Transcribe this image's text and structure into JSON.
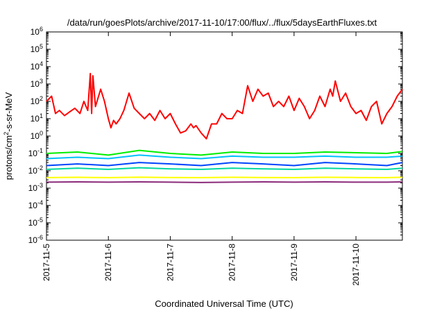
{
  "chart_data": {
    "type": "line",
    "title": "/data/run/goesPlots/archive/2017-11-10/17:00/flux/../flux/5daysEarthFluxes.txt",
    "xlabel": "Coordinated Universal Time (UTC)",
    "ylabel": "protons/cm²-s-sr-MeV",
    "ylabel_base": "protons/cm",
    "ylabel_sup": "2",
    "ylabel_rest": "-s-sr-MeV",
    "y_scale": "log",
    "ylim": [
      1e-06,
      1000000.0
    ],
    "y_ticks": [
      {
        "base": "10",
        "exp": "-6"
      },
      {
        "base": "10",
        "exp": "-5"
      },
      {
        "base": "10",
        "exp": "-4"
      },
      {
        "base": "10",
        "exp": "-3"
      },
      {
        "base": "10",
        "exp": "-2"
      },
      {
        "base": "10",
        "exp": "-1"
      },
      {
        "base": "10",
        "exp": "0"
      },
      {
        "base": "10",
        "exp": "1"
      },
      {
        "base": "10",
        "exp": "2"
      },
      {
        "base": "10",
        "exp": "3"
      },
      {
        "base": "10",
        "exp": "4"
      },
      {
        "base": "10",
        "exp": "5"
      },
      {
        "base": "10",
        "exp": "6"
      }
    ],
    "xlim": [
      "2017-11-05T00:00",
      "2017-11-10T18:00"
    ],
    "x_ticks": [
      "2017-11-5",
      "2017-11-6",
      "2017-11-7",
      "2017-11-8",
      "2017-11-9",
      "2017-11-10"
    ],
    "grid": false,
    "series": [
      {
        "color": "#ff0000",
        "x": [
          "2017-11-05T00:00",
          "2017-11-05T02:00",
          "2017-11-05T03:30",
          "2017-11-05T05:00",
          "2017-11-05T07:00",
          "2017-11-05T09:00",
          "2017-11-05T11:00",
          "2017-11-05T13:00",
          "2017-11-05T14:30",
          "2017-11-05T16:00",
          "2017-11-05T17:00",
          "2017-11-05T17:30",
          "2017-11-05T18:00",
          "2017-11-05T19:00",
          "2017-11-05T21:00",
          "2017-11-05T22:30",
          "2017-11-06T00:00",
          "2017-11-06T01:00",
          "2017-11-06T02:00",
          "2017-11-06T03:00",
          "2017-11-06T04:30",
          "2017-11-06T06:00",
          "2017-11-06T08:00",
          "2017-11-06T10:00",
          "2017-11-06T12:00",
          "2017-11-06T14:00",
          "2017-11-06T16:00",
          "2017-11-06T18:00",
          "2017-11-06T20:00",
          "2017-11-06T22:00",
          "2017-11-07T00:00",
          "2017-11-07T02:00",
          "2017-11-07T04:00",
          "2017-11-07T06:00",
          "2017-11-07T08:00",
          "2017-11-07T09:00",
          "2017-11-07T10:00",
          "2017-11-07T12:00",
          "2017-11-07T14:00",
          "2017-11-07T16:00",
          "2017-11-07T18:00",
          "2017-11-07T20:00",
          "2017-11-07T22:00",
          "2017-11-08T00:00",
          "2017-11-08T02:00",
          "2017-11-08T04:00",
          "2017-11-08T06:00",
          "2017-11-08T08:00",
          "2017-11-08T10:00",
          "2017-11-08T12:00",
          "2017-11-08T14:00",
          "2017-11-08T16:00",
          "2017-11-08T18:00",
          "2017-11-08T20:00",
          "2017-11-08T22:00",
          "2017-11-09T00:00",
          "2017-11-09T02:00",
          "2017-11-09T04:00",
          "2017-11-09T06:00",
          "2017-11-09T08:00",
          "2017-11-09T10:00",
          "2017-11-09T12:00",
          "2017-11-09T14:00",
          "2017-11-09T15:00",
          "2017-11-09T16:00",
          "2017-11-09T18:00",
          "2017-11-09T20:00",
          "2017-11-09T22:00",
          "2017-11-10T00:00",
          "2017-11-10T02:00",
          "2017-11-10T04:00",
          "2017-11-10T06:00",
          "2017-11-10T08:00",
          "2017-11-10T10:00",
          "2017-11-10T12:00",
          "2017-11-10T14:00",
          "2017-11-10T16:00",
          "2017-11-10T18:00"
        ],
        "values": [
          100,
          200,
          20,
          30,
          15,
          25,
          40,
          20,
          100,
          30,
          4000,
          20,
          3000,
          50,
          500,
          100,
          10,
          3,
          8,
          5,
          10,
          30,
          300,
          40,
          20,
          10,
          20,
          8,
          30,
          10,
          20,
          5,
          1.5,
          2,
          5,
          3,
          4,
          1.5,
          0.7,
          5,
          5,
          20,
          10,
          10,
          30,
          20,
          800,
          100,
          500,
          200,
          300,
          50,
          100,
          50,
          200,
          30,
          150,
          50,
          10,
          30,
          200,
          50,
          500,
          200,
          1500,
          100,
          300,
          50,
          20,
          30,
          8,
          50,
          100,
          5,
          20,
          50,
          200,
          500
        ]
      },
      {
        "color": "#00ee00",
        "x": [
          "2017-11-05T00:00",
          "2017-11-05T12:00",
          "2017-11-06T00:00",
          "2017-11-06T12:00",
          "2017-11-07T00:00",
          "2017-11-07T12:00",
          "2017-11-08T00:00",
          "2017-11-08T12:00",
          "2017-11-09T00:00",
          "2017-11-09T12:00",
          "2017-11-10T00:00",
          "2017-11-10T12:00",
          "2017-11-10T18:00"
        ],
        "values": [
          0.1,
          0.12,
          0.08,
          0.15,
          0.1,
          0.08,
          0.12,
          0.1,
          0.1,
          0.12,
          0.11,
          0.1,
          0.13
        ]
      },
      {
        "color": "#00bfff",
        "x": [
          "2017-11-05T00:00",
          "2017-11-05T12:00",
          "2017-11-06T00:00",
          "2017-11-06T12:00",
          "2017-11-07T00:00",
          "2017-11-07T12:00",
          "2017-11-08T00:00",
          "2017-11-08T12:00",
          "2017-11-09T00:00",
          "2017-11-09T12:00",
          "2017-11-10T00:00",
          "2017-11-10T12:00",
          "2017-11-10T18:00"
        ],
        "values": [
          0.05,
          0.06,
          0.05,
          0.08,
          0.06,
          0.05,
          0.07,
          0.06,
          0.06,
          0.07,
          0.06,
          0.06,
          0.07
        ]
      },
      {
        "color": "#0044ff",
        "x": [
          "2017-11-05T00:00",
          "2017-11-05T12:00",
          "2017-11-06T00:00",
          "2017-11-06T12:00",
          "2017-11-07T00:00",
          "2017-11-07T12:00",
          "2017-11-08T00:00",
          "2017-11-08T12:00",
          "2017-11-09T00:00",
          "2017-11-09T12:00",
          "2017-11-10T00:00",
          "2017-11-10T12:00",
          "2017-11-10T18:00"
        ],
        "values": [
          0.02,
          0.025,
          0.02,
          0.03,
          0.025,
          0.02,
          0.03,
          0.025,
          0.02,
          0.03,
          0.025,
          0.02,
          0.03
        ]
      },
      {
        "color": "#00d8a0",
        "x": [
          "2017-11-05T00:00",
          "2017-11-05T12:00",
          "2017-11-06T00:00",
          "2017-11-06T12:00",
          "2017-11-07T00:00",
          "2017-11-07T12:00",
          "2017-11-08T00:00",
          "2017-11-08T12:00",
          "2017-11-09T00:00",
          "2017-11-09T12:00",
          "2017-11-10T00:00",
          "2017-11-10T12:00",
          "2017-11-10T18:00"
        ],
        "values": [
          0.012,
          0.014,
          0.012,
          0.015,
          0.013,
          0.012,
          0.014,
          0.013,
          0.012,
          0.014,
          0.013,
          0.012,
          0.014
        ]
      },
      {
        "color": "#ffff00",
        "x": [
          "2017-11-05T00:00",
          "2017-11-05T12:00",
          "2017-11-06T00:00",
          "2017-11-06T12:00",
          "2017-11-07T00:00",
          "2017-11-07T12:00",
          "2017-11-08T00:00",
          "2017-11-08T12:00",
          "2017-11-09T00:00",
          "2017-11-09T12:00",
          "2017-11-10T00:00",
          "2017-11-10T12:00",
          "2017-11-10T18:00"
        ],
        "values": [
          0.004,
          0.0042,
          0.004,
          0.0043,
          0.0041,
          0.004,
          0.0042,
          0.0041,
          0.004,
          0.0042,
          0.0041,
          0.004,
          0.0042
        ]
      },
      {
        "color": "#8b2a7a",
        "x": [
          "2017-11-05T00:00",
          "2017-11-05T12:00",
          "2017-11-06T00:00",
          "2017-11-06T12:00",
          "2017-11-07T00:00",
          "2017-11-07T12:00",
          "2017-11-08T00:00",
          "2017-11-08T12:00",
          "2017-11-09T00:00",
          "2017-11-09T12:00",
          "2017-11-10T00:00",
          "2017-11-10T12:00",
          "2017-11-10T18:00"
        ],
        "values": [
          0.0022,
          0.0023,
          0.0022,
          0.0023,
          0.0022,
          0.0021,
          0.0022,
          0.0023,
          0.0022,
          0.0023,
          0.0022,
          0.0022,
          0.0023
        ]
      }
    ]
  }
}
